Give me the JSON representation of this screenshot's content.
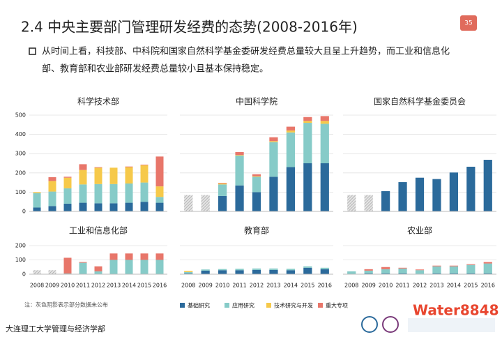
{
  "slide": {
    "title": "2.4  中央主要部门管理研发经费的态势(2008-2016年)",
    "page_number": "35",
    "bullet": [
      "从时间上看，科技部、中科院和国家自然科学基金委研发经费总量较大且呈上升趋势，而工业和信息化",
      "部、教育部和农业部研发经费总量较小且基本保持稳定。"
    ],
    "note": "注：灰色阴影表示部分数据未公布",
    "footer": "大连理工大学管理与经济学部",
    "watermark": "Water8848"
  },
  "chart_data": [
    {
      "type": "bar",
      "title": "科学技术部",
      "ylim": [
        0,
        500
      ],
      "yticks": [
        0,
        100,
        200,
        300,
        400,
        500
      ],
      "tick_labels": true,
      "grid": true,
      "unpublished": [
        null,
        null,
        null,
        null,
        null,
        null,
        null,
        null,
        null
      ],
      "series": [
        {
          "name": "基础研究",
          "color": "#2b6a9b",
          "values": [
            20,
            28,
            40,
            45,
            42,
            42,
            45,
            50,
            45
          ]
        },
        {
          "name": "应用研究",
          "color": "#86cbc8",
          "values": [
            75,
            75,
            80,
            95,
            100,
            100,
            100,
            100,
            30
          ]
        },
        {
          "name": "技术研究与开发",
          "color": "#f6c94a",
          "values": [
            5,
            55,
            55,
            75,
            85,
            85,
            85,
            90,
            55
          ]
        },
        {
          "name": "重大专项",
          "color": "#e8766a",
          "values": [
            0,
            20,
            5,
            30,
            3,
            0,
            3,
            3,
            155
          ]
        }
      ]
    },
    {
      "type": "bar",
      "title": "中国科学院",
      "ylim": [
        0,
        500
      ],
      "yticks": [
        0,
        100,
        200,
        300,
        400,
        500
      ],
      "tick_labels": false,
      "grid": true,
      "unpublished": [
        85,
        85,
        null,
        null,
        null,
        null,
        null,
        null,
        null
      ],
      "series": [
        {
          "name": "基础研究",
          "color": "#2b6a9b",
          "values": [
            null,
            null,
            80,
            135,
            100,
            180,
            230,
            250,
            250
          ]
        },
        {
          "name": "应用研究",
          "color": "#86cbc8",
          "values": [
            null,
            null,
            60,
            155,
            80,
            180,
            180,
            210,
            205
          ]
        },
        {
          "name": "技术研究与开发",
          "color": "#f6c94a",
          "values": [
            null,
            null,
            5,
            3,
            3,
            5,
            10,
            10,
            15
          ]
        },
        {
          "name": "重大专项",
          "color": "#e8766a",
          "values": [
            null,
            null,
            3,
            15,
            10,
            20,
            20,
            20,
            25
          ]
        }
      ]
    },
    {
      "type": "bar",
      "title": "国家自然科学基金委员会",
      "ylim": [
        0,
        500
      ],
      "yticks": [
        0,
        100,
        200,
        300,
        400,
        500
      ],
      "tick_labels": false,
      "grid": true,
      "unpublished": [
        85,
        85,
        null,
        null,
        null,
        null,
        null,
        null,
        null
      ],
      "series": [
        {
          "name": "基础研究",
          "color": "#2b6a9b",
          "values": [
            null,
            null,
            105,
            152,
            175,
            168,
            202,
            232,
            268
          ]
        }
      ]
    },
    {
      "type": "bar",
      "title": "工业和信息化部",
      "ylim": [
        0,
        200
      ],
      "yticks": [
        0,
        100,
        200
      ],
      "tick_labels": true,
      "grid": true,
      "categories": [
        "2008",
        "2009",
        "2010",
        "2011",
        "2012",
        "2013",
        "2014",
        "2015",
        "2016"
      ],
      "unpublished": [
        28,
        28,
        null,
        null,
        null,
        null,
        null,
        null,
        null
      ],
      "series": [
        {
          "name": "应用研究",
          "color": "#86cbc8",
          "values": [
            null,
            null,
            5,
            80,
            20,
            100,
            100,
            100,
            100
          ]
        },
        {
          "name": "重大专项",
          "color": "#e8766a",
          "values": [
            null,
            null,
            110,
            5,
            35,
            45,
            45,
            45,
            45
          ]
        }
      ]
    },
    {
      "type": "bar",
      "title": "教育部",
      "ylim": [
        0,
        200
      ],
      "yticks": [
        0,
        100,
        200
      ],
      "tick_labels": false,
      "grid": true,
      "categories": [
        "2008",
        "2009",
        "2010",
        "2011",
        "2012",
        "2013",
        "2014",
        "2015",
        "2016"
      ],
      "unpublished": [
        null,
        null,
        null,
        null,
        null,
        null,
        null,
        null,
        null
      ],
      "series": [
        {
          "name": "基础研究",
          "color": "#2b6a9b",
          "values": [
            5,
            25,
            28,
            28,
            30,
            30,
            28,
            45,
            35
          ]
        },
        {
          "name": "应用研究",
          "color": "#86cbc8",
          "values": [
            10,
            8,
            8,
            10,
            10,
            10,
            10,
            10,
            10
          ]
        },
        {
          "name": "技术研究与开发",
          "color": "#f6c94a",
          "values": [
            8,
            0,
            0,
            0,
            0,
            0,
            0,
            0,
            0
          ]
        }
      ]
    },
    {
      "type": "bar",
      "title": "农业部",
      "ylim": [
        0,
        200
      ],
      "yticks": [
        0,
        100,
        200
      ],
      "tick_labels": false,
      "grid": true,
      "categories": [
        "2008",
        "2009",
        "2010",
        "2011",
        "2012",
        "2013",
        "2014",
        "2015",
        "2016"
      ],
      "unpublished": [
        null,
        null,
        null,
        null,
        null,
        null,
        null,
        null,
        null
      ],
      "series": [
        {
          "name": "基础研究",
          "color": "#2b6a9b",
          "values": [
            0,
            5,
            5,
            5,
            3,
            5,
            5,
            5,
            5
          ]
        },
        {
          "name": "应用研究",
          "color": "#86cbc8",
          "values": [
            20,
            20,
            30,
            35,
            25,
            50,
            50,
            60,
            70
          ]
        },
        {
          "name": "重大专项",
          "color": "#e8766a",
          "values": [
            0,
            10,
            15,
            5,
            5,
            5,
            5,
            5,
            10
          ]
        }
      ]
    }
  ]
}
